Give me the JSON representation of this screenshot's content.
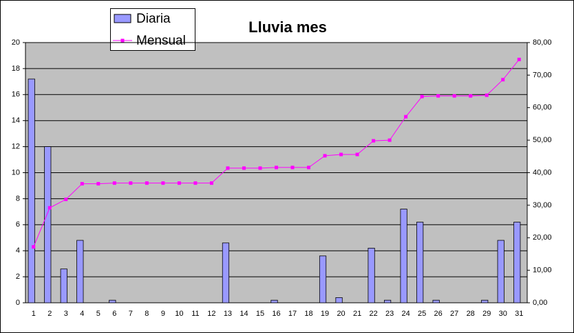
{
  "chart_data": {
    "type": "combo",
    "title": "Lluvia mes",
    "categories": [
      1,
      2,
      3,
      4,
      5,
      6,
      7,
      8,
      9,
      10,
      11,
      12,
      13,
      14,
      15,
      16,
      17,
      18,
      19,
      20,
      21,
      22,
      23,
      24,
      25,
      26,
      27,
      28,
      29,
      30,
      31
    ],
    "series": [
      {
        "name": "Diaria",
        "type": "bar",
        "color": "#9999ff",
        "values": [
          17.2,
          12.0,
          2.6,
          4.8,
          0,
          0.2,
          0,
          0,
          0,
          0,
          0,
          0,
          4.6,
          0,
          0,
          0.2,
          0,
          0,
          3.6,
          0.4,
          0,
          4.2,
          0.2,
          7.2,
          6.2,
          0.2,
          0,
          0,
          0.2,
          4.8,
          6.2
        ]
      },
      {
        "name": "Mensual",
        "type": "line",
        "color": "#ff00ff",
        "axis": "y2",
        "values": [
          17.2,
          29.2,
          31.8,
          36.6,
          36.6,
          36.8,
          36.8,
          36.8,
          36.8,
          36.8,
          36.8,
          36.8,
          41.4,
          41.4,
          41.4,
          41.6,
          41.6,
          41.6,
          45.2,
          45.6,
          45.6,
          49.8,
          50.0,
          57.2,
          63.4,
          63.6,
          63.6,
          63.6,
          63.8,
          68.6,
          74.8
        ]
      }
    ],
    "ylim": [
      0,
      20
    ],
    "yticks": [
      0,
      2,
      4,
      6,
      8,
      10,
      12,
      14,
      16,
      18,
      20
    ],
    "y2lim": [
      0,
      80
    ],
    "y2ticks": [
      {
        "value": 0,
        "label": "0,00"
      },
      {
        "value": 10,
        "label": "10,00"
      },
      {
        "value": 20,
        "label": "20,00"
      },
      {
        "value": 30,
        "label": "30,00"
      },
      {
        "value": 40,
        "label": "40,00"
      },
      {
        "value": 50,
        "label": "50,00"
      },
      {
        "value": 60,
        "label": "60,00"
      },
      {
        "value": 70,
        "label": "70,00"
      },
      {
        "value": 80,
        "label": "80,00"
      }
    ],
    "grid": true
  }
}
